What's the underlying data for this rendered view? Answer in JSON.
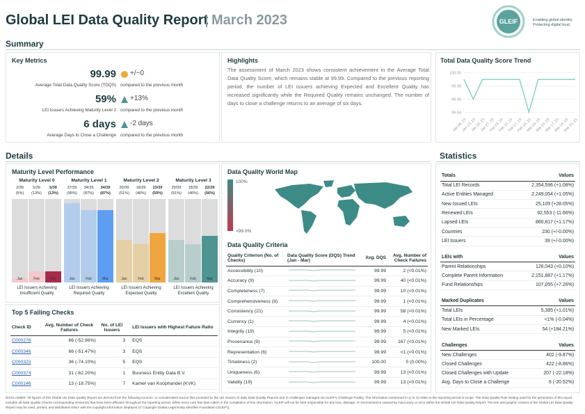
{
  "header": {
    "title": "Global LEI Data Quality Report",
    "date": "March 2023",
    "logo": "GLEIF",
    "tagline": [
      "Enabling global identity",
      "Protecting digital trust."
    ]
  },
  "sections": {
    "summary": "Summary",
    "details": "Details",
    "statistics": "Statistics"
  },
  "key_metrics": {
    "title": "Key Metrics",
    "items": [
      {
        "value": "99.99",
        "label": "Average Total Data Quality Score (TDQS)",
        "change": "+/−0",
        "note": "compared to the previous month",
        "icon": "circle"
      },
      {
        "value": "59%",
        "label": "LEI Issuers Achieving Maturity Level 2",
        "change": "+13%",
        "note": "compared to the previous month",
        "icon": "triangle"
      },
      {
        "value": "6 days",
        "label": "Average Days to Close a Challenge",
        "change": "-2 days",
        "note": "compared to the previous month",
        "icon": "triangle"
      }
    ]
  },
  "highlights": {
    "title": "Highlights",
    "text": "The assessment of March 2023 shows consistent achievement in the Average Total Data Quality Score, which remains stable at 99.99. Compared to the previous reporting period, the number of LEI issuers achieving Expected and Excellent Quality has increased significantly while the Required Quality remains unchanged. The number of days to close a challenge returns to an average of six days."
  },
  "trend": {
    "title": "Total Data Quality Score Trend",
    "categories": [
      "Jan 06, 23",
      "Jan 13, 23",
      "Jan 20, 23",
      "Jan 27, 23",
      "Feb 03, 23",
      "Feb 10, 23",
      "Feb 17, 23",
      "Feb 24, 23",
      "Mar 03, 23",
      "Mar 10, 23",
      "Mar 17, 23",
      "Mar 24, 23",
      "Mar 31, 23"
    ],
    "values": [
      99.99,
      99.96,
      99.99,
      99.99,
      99.99,
      99.99,
      99.99,
      99.94,
      99.99,
      99.99,
      99.99,
      99.99,
      99.99
    ],
    "color": "#7fcfc4",
    "ylim": [
      99.935,
      100.005
    ],
    "yticks": [
      {
        "value": 100,
        "label": "100.00"
      },
      {
        "value": 99.98,
        "label": "99.98"
      },
      {
        "value": 99.96,
        "label": "99.96"
      },
      {
        "value": 99.94,
        "label": "99.94"
      }
    ]
  },
  "maturity": {
    "title": "Maturity Level Performance",
    "categories": [
      "Jan",
      "Feb",
      "Mar"
    ],
    "ylim": [
      0,
      100
    ],
    "groups": [
      {
        "name": "Maturity Level 0",
        "counts": [
          "2/39",
          "5/39",
          "5/39"
        ],
        "value_labels": [
          "(5%)",
          "(13%)",
          "(13%)"
        ],
        "values": [
          5,
          13,
          13
        ],
        "colors": [
          "#f3c9cc",
          "#f3c9cc",
          "#a72a4b"
        ],
        "caption": "LEI Issuers Achieving Insufficient Quality"
      },
      {
        "name": "Maturity Level 1",
        "counts": [
          "37/39",
          "34/39",
          "34/39"
        ],
        "value_labels": [
          "(95%)",
          "(87%)",
          "(87%)"
        ],
        "values": [
          95,
          87,
          87
        ],
        "colors": [
          "#b3cceb",
          "#b3cceb",
          "#5d9ef2"
        ],
        "caption": "LEI Issuers Achieving Required Quality"
      },
      {
        "name": "Maturity Level 2",
        "counts": [
          "20/39",
          "18/39",
          "23/39"
        ],
        "value_labels": [
          "(51%)",
          "(46%)",
          "(59%)"
        ],
        "values": [
          51,
          46,
          59
        ],
        "colors": [
          "#e4cfa6",
          "#e4cfa6",
          "#efa640"
        ],
        "caption": "LEI Issuers Achieving Expected Quality"
      },
      {
        "name": "Maturity Level 3",
        "counts": [
          "20/39",
          "18/39",
          "22/39"
        ],
        "value_labels": [
          "(51%)",
          "(46%)",
          "(56%)"
        ],
        "values": [
          51,
          46,
          56
        ],
        "colors": [
          "#b7cecc",
          "#b7cecc",
          "#4e9592"
        ],
        "caption": "LEI Issuers Achieving Excellent Quality"
      }
    ]
  },
  "top5": {
    "title": "Top 5 Failing Checks",
    "headers": [
      "Check ID",
      "Avg. Number of Check Failures",
      "No. of LEI Issuers",
      "LEI Issuers with Highest Failure Ratio"
    ],
    "rows": [
      [
        "C000276",
        "66 (-52.86%)",
        "3",
        "EQS"
      ],
      [
        "C000346",
        "66 (-51.47%)",
        "3",
        "EQS"
      ],
      [
        "C000323",
        "36 (-74.10%)",
        "5",
        "EQS"
      ],
      [
        "C000374",
        "31 (-62.20%)",
        "1",
        "Business Entity Data B.V."
      ],
      [
        "C000146",
        "13 (-18.75%)",
        "7",
        "Kamer van Koophandel (KVK)"
      ]
    ]
  },
  "map": {
    "title": "Data Quality World Map",
    "legend_max": "100%",
    "legend_min": "<99.0%"
  },
  "criteria": {
    "title": "Data Quality Criteria",
    "headers": [
      "Quality Criterion (No. of Checks)",
      "Data Quality Score (DQS) Trend (Jan - Mar)",
      "Avg. DQS",
      "Avg. Number of Check Failures"
    ],
    "rows": [
      [
        "Accessibility (10)",
        "99.99",
        "2 (<0.01%)"
      ],
      [
        "Accuracy (9)",
        "99.99",
        "40 (<0.01%)"
      ],
      [
        "Completeness (7)",
        "99.99",
        "10 (<0.01%)"
      ],
      [
        "Comprehensiveness (8)",
        "99.99",
        "1 (<0.01%)"
      ],
      [
        "Consistency (21)",
        "99.99",
        "58 (<0.01%)"
      ],
      [
        "Currency (1)",
        "99.99",
        "4 (<0.01%)"
      ],
      [
        "Integrity (19)",
        "99.99",
        "5 (<0.01%)"
      ],
      [
        "Provenance (9)",
        "99.99",
        "167 (<0.01%)"
      ],
      [
        "Representation (6)",
        "99.99",
        "<1 (<0.01%)"
      ],
      [
        "Timeliness (2)",
        "100.00",
        "0 (0.00%)"
      ],
      [
        "Uniqueness (6)",
        "99.99",
        "13 (<0.01%)"
      ],
      [
        "Validity (19)",
        "99.99",
        "13 (<0.01%)"
      ]
    ]
  },
  "statistics": [
    {
      "title": "Totals",
      "values_header": "Values",
      "rows": [
        [
          "Total LEI Records",
          "2,354,596 (+1.08%)"
        ],
        [
          "Active Entities Managed",
          "2,249,054 (+1.05%)"
        ],
        [
          "New Issued LEIs",
          "25,109 (+28.05%)"
        ],
        [
          "Renewed LEIs",
          "92,553 (-11.66%)"
        ],
        [
          "Lapsed LEIs",
          "860,817 (+1.17%)"
        ],
        [
          "Countries",
          "230 (+/-0.00%)"
        ],
        [
          "LEI Issuers",
          "39 (+/-0.00%)"
        ]
      ]
    },
    {
      "title": "LEIs with",
      "values_header": "Values",
      "rows": [
        [
          "Parent Relationships",
          "126,043 (+0.10%)"
        ],
        [
          "Complete Parent Information",
          "2,151,887 (+1.17%)"
        ],
        [
          "Fund Relationships",
          "107,055 (+7.26%)"
        ]
      ]
    },
    {
      "title": "Marked Duplicates",
      "values_header": "Values",
      "rows": [
        [
          "Total LEIs",
          "5,385 (+1.01%)"
        ],
        [
          "Total LEIs in Percentage",
          "<1% (-0.04%)"
        ],
        [
          "New Marked LEIs",
          "54 (+184.21%)"
        ]
      ]
    },
    {
      "title": "Challenges",
      "values_header": "Values",
      "rows": [
        [
          "New Challenges",
          "402 (-9.87%)"
        ],
        [
          "Closed Challenges",
          "422 (-8.86%)"
        ],
        [
          "Closed Challenges with Update",
          "207 (-22.18%)"
        ],
        [
          "Avg. Days to Close a Challenge",
          "6 (-20.52%)"
        ]
      ]
    }
  ],
  "disclaimer": "DISCLAIMER: All figures of this Global LEI Data Quality Report are derived from the following sources: 1) concatenated source files provided by the LEI Issuers 2) daily Data Quality Reports and 3) challenges managed via GLEIF's Challenge Facility. The information mentioned in 1) to 3) relate to the reporting period in scope. The Data Quality Rule Setting used for the generation of this report includes all Data Quality Checks corresponding version(s) that have been effective throughout the reporting period. While every care has been taken in the compilation of this information, GLEIF will not be held responsible for any loss, damage, or inconvenience caused by inaccuracy or error within the Global LEI Data Quality Report. The text and graphic content of the Global LEI Data Quality Report may be used, printed, and distributed ONLY with the copyright information displayed (© Copyright Global Legal Entity Identifier Foundation (GLEIF))."
}
